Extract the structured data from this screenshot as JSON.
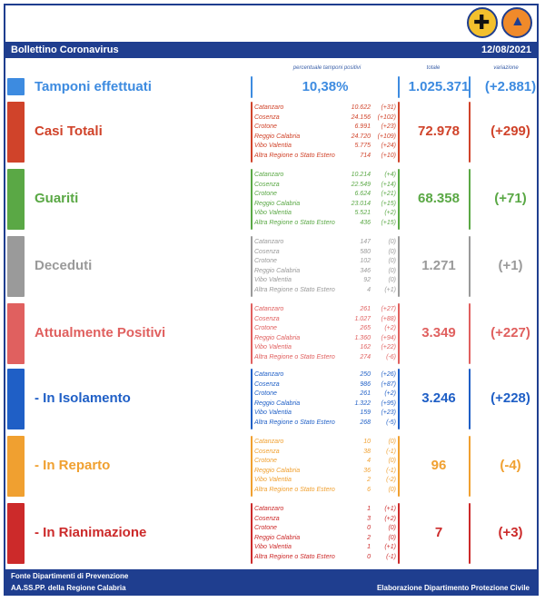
{
  "header": {
    "title": "Bollettino Coronavirus",
    "date": "12/08/2021"
  },
  "columns": {
    "perc": "percentuale tamponi positivi",
    "total": "totale",
    "variation": "variazione"
  },
  "tamponi": {
    "label": "Tamponi effettuati",
    "perc": "10,38%",
    "total": "1.025.371",
    "variation": "(+2.881)",
    "color": "#3d8be0"
  },
  "sections": [
    {
      "id": "casi",
      "label": "Casi Totali",
      "color": "#d0432a",
      "total": "72.978",
      "variation": "(+299)",
      "rows": [
        [
          "Catanzaro",
          "10.622",
          "(+31)"
        ],
        [
          "Cosenza",
          "24.156",
          "(+102)"
        ],
        [
          "Crotone",
          "6.991",
          "(+23)"
        ],
        [
          "Reggio Calabria",
          "24.720",
          "(+109)"
        ],
        [
          "Vibo Valentia",
          "5.775",
          "(+24)"
        ],
        [
          "Altra Regione o Stato Estero",
          "714",
          "(+10)"
        ]
      ]
    },
    {
      "id": "guariti",
      "label": "Guariti",
      "color": "#5aa845",
      "total": "68.358",
      "variation": "(+71)",
      "rows": [
        [
          "Catanzaro",
          "10.214",
          "(+4)"
        ],
        [
          "Cosenza",
          "22.549",
          "(+14)"
        ],
        [
          "Crotone",
          "6.624",
          "(+21)"
        ],
        [
          "Reggio Calabria",
          "23.014",
          "(+15)"
        ],
        [
          "Vibo Valentia",
          "5.521",
          "(+2)"
        ],
        [
          "Altra Regione o Stato Estero",
          "436",
          "(+15)"
        ]
      ]
    },
    {
      "id": "deceduti",
      "label": "Deceduti",
      "color": "#9a9a9a",
      "total": "1.271",
      "variation": "(+1)",
      "rows": [
        [
          "Catanzaro",
          "147",
          "(0)"
        ],
        [
          "Cosenza",
          "580",
          "(0)"
        ],
        [
          "Crotone",
          "102",
          "(0)"
        ],
        [
          "Reggio Calabria",
          "346",
          "(0)"
        ],
        [
          "Vibo Valentia",
          "92",
          "(0)"
        ],
        [
          "Altra Regione o Stato Estero",
          "4",
          "(+1)"
        ]
      ]
    },
    {
      "id": "positivi",
      "label": "Attualmente Positivi",
      "color": "#e0605f",
      "total": "3.349",
      "variation": "(+227)",
      "rows": [
        [
          "Catanzaro",
          "261",
          "(+27)"
        ],
        [
          "Cosenza",
          "1.027",
          "(+88)"
        ],
        [
          "Crotone",
          "265",
          "(+2)"
        ],
        [
          "Reggio Calabria",
          "1.360",
          "(+94)"
        ],
        [
          "Vibo Valentia",
          "162",
          "(+22)"
        ],
        [
          "Altra Regione o Stato Estero",
          "274",
          "(-6)"
        ]
      ]
    },
    {
      "id": "isolamento",
      "label": "- In Isolamento",
      "color": "#1f5fc6",
      "total": "3.246",
      "variation": "(+228)",
      "rows": [
        [
          "Catanzaro",
          "250",
          "(+26)"
        ],
        [
          "Cosenza",
          "986",
          "(+87)"
        ],
        [
          "Crotone",
          "261",
          "(+2)"
        ],
        [
          "Reggio Calabria",
          "1.322",
          "(+95)"
        ],
        [
          "Vibo Valentia",
          "159",
          "(+23)"
        ],
        [
          "Altra Regione o Stato Estero",
          "268",
          "(-5)"
        ]
      ]
    },
    {
      "id": "reparto",
      "label": "- In Reparto",
      "color": "#f0a030",
      "total": "96",
      "variation": "(-4)",
      "rows": [
        [
          "Catanzaro",
          "10",
          "(0)"
        ],
        [
          "Cosenza",
          "38",
          "(-1)"
        ],
        [
          "Crotone",
          "4",
          "(0)"
        ],
        [
          "Reggio Calabria",
          "36",
          "(-1)"
        ],
        [
          "Vibo Valentia",
          "2",
          "(-2)"
        ],
        [
          "Altra Regione o Stato Estero",
          "6",
          "(0)"
        ]
      ]
    },
    {
      "id": "rianimazione",
      "label": "- In Rianimazione",
      "color": "#cc2a2a",
      "total": "7",
      "variation": "(+3)",
      "rows": [
        [
          "Catanzaro",
          "1",
          "(+1)"
        ],
        [
          "Cosenza",
          "3",
          "(+2)"
        ],
        [
          "Crotone",
          "0",
          "(0)"
        ],
        [
          "Reggio Calabria",
          "2",
          "(0)"
        ],
        [
          "Vibo Valentia",
          "1",
          "(+1)"
        ],
        [
          "Altra Regione o Stato Estero",
          "0",
          "(-1)"
        ]
      ]
    }
  ],
  "footer": {
    "line1": "Fonte Dipartimenti di Prevenzione",
    "line2": "AA.SS.PP.  della Regione Calabria",
    "right": "Elaborazione Dipartimento Protezione Civile"
  }
}
